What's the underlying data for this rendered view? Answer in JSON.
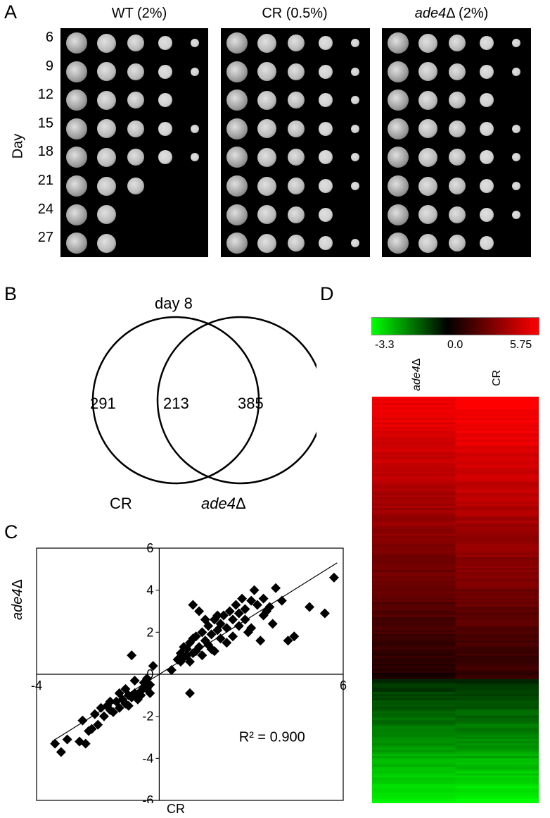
{
  "panel_a": {
    "letter": "A",
    "y_axis_label": "Day",
    "days": [
      "6",
      "9",
      "12",
      "15",
      "18",
      "21",
      "24",
      "27"
    ],
    "columns": [
      {
        "title_plain": "WT (2%)",
        "italic": false
      },
      {
        "title_plain": "CR (0.5%)",
        "italic": false
      },
      {
        "title_italic": "ade4",
        "title_suffix": "Δ (2%)",
        "italic": true
      }
    ],
    "spot_counts": {
      "wt": [
        5,
        5,
        4,
        5,
        5,
        3,
        2,
        2
      ],
      "cr": [
        5,
        5,
        5,
        5,
        5,
        5,
        4,
        5
      ],
      "ade4": [
        5,
        5,
        4,
        5,
        5,
        5,
        5,
        4
      ]
    }
  },
  "panel_b": {
    "letter": "B",
    "title": "day 8",
    "left_only": "291",
    "overlap": "213",
    "right_only": "385",
    "left_label": "CR",
    "right_label_italic": "ade4",
    "right_label_suffix": "Δ"
  },
  "panel_c": {
    "letter": "C",
    "xlabel": "CR",
    "ylabel_italic": "ade4",
    "ylabel_suffix": "Δ",
    "annotation": "R² = 0.900",
    "chart_data": {
      "type": "scatter",
      "xlim": [
        -4,
        6
      ],
      "ylim": [
        -6,
        6
      ],
      "x_ticks": [
        "-4",
        "6"
      ],
      "y_ticks": [
        "6",
        "4",
        "2",
        "0",
        "-2",
        "-4",
        "-6"
      ],
      "trendline": {
        "x0": -3.5,
        "y0": -3.2,
        "x1": 5.8,
        "y1": 5.3
      },
      "points": [
        [
          -3.4,
          -3.3
        ],
        [
          -3.2,
          -3.7
        ],
        [
          -3.0,
          -3.1
        ],
        [
          -2.6,
          -3.2
        ],
        [
          -2.4,
          -3.3
        ],
        [
          -2.5,
          -2.2
        ],
        [
          -2.2,
          -2.6
        ],
        [
          -2.0,
          -2.4
        ],
        [
          -1.9,
          -1.6
        ],
        [
          -1.7,
          -1.5
        ],
        [
          -1.6,
          -1.7
        ],
        [
          -1.4,
          -1.3
        ],
        [
          -1.3,
          -1.6
        ],
        [
          -1.2,
          -1.2
        ],
        [
          -1.1,
          -1.4
        ],
        [
          -1.0,
          -1.0
        ],
        [
          -0.9,
          -1.1
        ],
        [
          -0.8,
          -0.9
        ],
        [
          -0.7,
          -1.2
        ],
        [
          -0.6,
          -0.8
        ],
        [
          -0.5,
          -0.6
        ],
        [
          -0.4,
          -0.7
        ],
        [
          -0.3,
          -0.5
        ],
        [
          -0.2,
          0.4
        ],
        [
          -0.4,
          -0.2
        ],
        [
          -0.9,
          0.9
        ],
        [
          -1.0,
          -1.5
        ],
        [
          -1.5,
          -1.8
        ],
        [
          -1.8,
          -2.0
        ],
        [
          -2.1,
          -1.9
        ],
        [
          -1.3,
          -0.9
        ],
        [
          -0.6,
          -1.0
        ],
        [
          -1.6,
          -1.3
        ],
        [
          -0.8,
          -0.3
        ],
        [
          -0.5,
          -0.4
        ],
        [
          -2.3,
          -2.7
        ],
        [
          -1.1,
          -0.7
        ],
        [
          -0.3,
          -0.9
        ],
        [
          0.4,
          0.2
        ],
        [
          0.6,
          0.7
        ],
        [
          0.7,
          1.0
        ],
        [
          0.8,
          0.8
        ],
        [
          0.9,
          1.2
        ],
        [
          1.0,
          1.5
        ],
        [
          1.0,
          0.6
        ],
        [
          1.1,
          1.0
        ],
        [
          1.2,
          1.8
        ],
        [
          1.3,
          1.3
        ],
        [
          1.4,
          2.0
        ],
        [
          1.5,
          1.6
        ],
        [
          1.6,
          2.3
        ],
        [
          1.7,
          1.9
        ],
        [
          1.8,
          2.6
        ],
        [
          1.9,
          2.1
        ],
        [
          2.0,
          2.4
        ],
        [
          2.1,
          2.8
        ],
        [
          2.2,
          2.2
        ],
        [
          2.3,
          3.0
        ],
        [
          2.4,
          2.6
        ],
        [
          2.5,
          3.3
        ],
        [
          2.6,
          2.9
        ],
        [
          2.7,
          3.6
        ],
        [
          2.8,
          3.1
        ],
        [
          3.0,
          3.5
        ],
        [
          3.1,
          4.0
        ],
        [
          3.2,
          3.3
        ],
        [
          3.4,
          3.6
        ],
        [
          3.5,
          3.0
        ],
        [
          3.6,
          3.2
        ],
        [
          3.8,
          4.1
        ],
        [
          4.0,
          3.5
        ],
        [
          4.2,
          1.6
        ],
        [
          4.4,
          1.8
        ],
        [
          4.9,
          3.2
        ],
        [
          5.4,
          2.9
        ],
        [
          5.7,
          4.6
        ],
        [
          3.7,
          2.4
        ],
        [
          3.3,
          1.6
        ],
        [
          2.9,
          2.0
        ],
        [
          1.0,
          -0.9
        ],
        [
          1.1,
          3.3
        ],
        [
          1.3,
          3.0
        ],
        [
          1.5,
          2.6
        ],
        [
          1.2,
          1.1
        ],
        [
          1.6,
          1.4
        ],
        [
          2.0,
          1.7
        ],
        [
          0.9,
          0.9
        ],
        [
          0.8,
          1.3
        ],
        [
          1.4,
          0.9
        ],
        [
          1.7,
          1.2
        ],
        [
          2.4,
          1.8
        ],
        [
          2.6,
          2.3
        ],
        [
          2.2,
          1.5
        ],
        [
          1.9,
          2.8
        ],
        [
          1.8,
          1.1
        ],
        [
          0.7,
          0.6
        ],
        [
          1.1,
          1.7
        ],
        [
          2.8,
          2.6
        ],
        [
          3.0,
          2.2
        ],
        [
          3.4,
          2.8
        ]
      ]
    }
  },
  "panel_d": {
    "letter": "D",
    "scale_min": "-3.3",
    "scale_mid": "0.0",
    "scale_max": "5.75",
    "colors": {
      "low": "#00ff00",
      "mid": "#000000",
      "high": "#ff0000"
    },
    "col1_italic": "ade4",
    "col1_suffix": "Δ",
    "col2": "CR"
  }
}
